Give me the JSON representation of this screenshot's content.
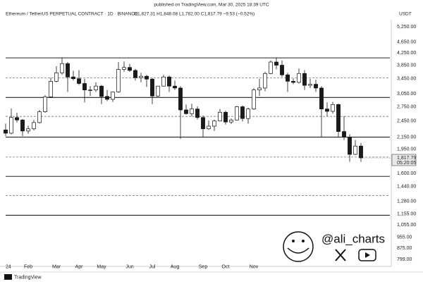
{
  "chart_data": {
    "type": "candlestick",
    "published": "published on TradingView.com, Mar 30, 2025 18:39 UTC",
    "title": "Ethereum / TetherUS PERPETUAL CONTRACT · 1D · BINANCE",
    "subtitle": "O1,827.31  H1,848.08  L1,782.00  C1,817.79  −9.53 (−0.52%)",
    "y_unit": "USDT",
    "footer": "TradingView",
    "watermark": "@ali_charts",
    "log_scale": true,
    "up_color": "#ffffff",
    "down_color": "#1a1a1a",
    "ylim": [
      768,
      5500
    ],
    "yticks": [
      {
        "value": 5250,
        "label": "5,250.00"
      },
      {
        "value": 4650,
        "label": "4,650.00"
      },
      {
        "value": 4250,
        "label": "4,250.00"
      },
      {
        "value": 3850,
        "label": "3,850.00"
      },
      {
        "value": 3450,
        "label": "3,450.00"
      },
      {
        "value": 3050,
        "label": "3,050.00"
      },
      {
        "value": 2750,
        "label": "2,750.00"
      },
      {
        "value": 2450,
        "label": "2,450.00"
      },
      {
        "value": 2150,
        "label": "2,150.00"
      },
      {
        "value": 1950,
        "label": "1,950.00"
      },
      {
        "value": 1600,
        "label": "1,600.00"
      },
      {
        "value": 1440,
        "label": "1,440.00"
      },
      {
        "value": 1280,
        "label": "1,280.00"
      },
      {
        "value": 1155,
        "label": "1,155.00"
      },
      {
        "value": 1055,
        "label": "1,055.00"
      },
      {
        "value": 955,
        "label": "955.00"
      },
      {
        "value": 875,
        "label": "875.00"
      },
      {
        "value": 799,
        "label": "799.00"
      }
    ],
    "last_price": {
      "value": 1817.79,
      "label": "1,817.79",
      "countdown": "05:20:05"
    },
    "levels": [
      {
        "value": 4085,
        "style": "solid"
      },
      {
        "value": 3475,
        "style": "dashed"
      },
      {
        "value": 2965,
        "style": "solid"
      },
      {
        "value": 2543,
        "style": "dashed"
      },
      {
        "value": 2150,
        "style": "solid"
      },
      {
        "value": 1830,
        "style": "dashed"
      },
      {
        "value": 1565,
        "style": "solid"
      },
      {
        "value": 1341,
        "style": "dashed"
      },
      {
        "value": 1142,
        "style": "solid"
      }
    ],
    "categories": [
      "24",
      null,
      null,
      null,
      "Feb",
      null,
      null,
      null,
      null,
      "Mar",
      null,
      null,
      null,
      "Apr",
      null,
      null,
      null,
      "May",
      null,
      null,
      null,
      null,
      "Jun",
      null,
      null,
      null,
      "Jul",
      null,
      null,
      null,
      "Aug",
      null,
      null,
      null,
      null,
      "Sep",
      null,
      null,
      null,
      "Oct",
      null,
      null,
      null,
      null,
      "Nov",
      null,
      null,
      null,
      null,
      null,
      null,
      null,
      null,
      null,
      null,
      null,
      null,
      null,
      null,
      null,
      null,
      null,
      null,
      null
    ],
    "open": [
      2280,
      2220,
      2520,
      2470,
      2260,
      2300,
      2420,
      2640,
      2980,
      3380,
      3620,
      3900,
      3500,
      3450,
      3320,
      3150,
      3150,
      3250,
      2990,
      2920,
      3100,
      3720,
      3780,
      3690,
      3480,
      3520,
      3440,
      3000,
      3250,
      3500,
      3250,
      3200,
      2680,
      2600,
      2700,
      2520,
      2300,
      2350,
      2450,
      2630,
      2430,
      2470,
      2750,
      2500,
      2700,
      3150,
      3200,
      3600,
      3950,
      3850,
      3560,
      3380,
      3350,
      3600,
      3270,
      3300,
      3200,
      2700,
      2650,
      2800,
      2250,
      2150,
      1870,
      2000
    ],
    "high": [
      2400,
      2710,
      2620,
      2490,
      2360,
      2470,
      2680,
      3020,
      3480,
      3820,
      4090,
      3950,
      3680,
      3700,
      3450,
      3250,
      3350,
      3280,
      3150,
      3110,
      3950,
      3970,
      3890,
      3740,
      3620,
      3560,
      3470,
      3260,
      3560,
      3540,
      3400,
      3250,
      2800,
      2820,
      2760,
      2560,
      2460,
      2480,
      2700,
      2660,
      2500,
      2770,
      2780,
      2730,
      3200,
      3450,
      3650,
      4000,
      4100,
      4000,
      3620,
      3460,
      3750,
      3700,
      3450,
      3420,
      3250,
      2850,
      2860,
      2820,
      2550,
      2200,
      2100,
      2050
    ],
    "low": [
      2170,
      2200,
      2420,
      2170,
      2210,
      2270,
      2400,
      2620,
      2960,
      3350,
      3560,
      3100,
      3400,
      3280,
      2850,
      3000,
      3100,
      2810,
      2880,
      2860,
      3080,
      3650,
      3650,
      3400,
      3350,
      3230,
      2810,
      2980,
      3240,
      3100,
      3150,
      2120,
      2580,
      2540,
      2480,
      2150,
      2280,
      2260,
      2440,
      2380,
      2390,
      2460,
      2440,
      2400,
      2680,
      3000,
      3120,
      3580,
      3720,
      3500,
      3100,
      3300,
      3320,
      3150,
      3200,
      3100,
      2150,
      2550,
      2600,
      2150,
      2100,
      1760,
      1860,
      1760
    ],
    "close": [
      2220,
      2520,
      2470,
      2260,
      2300,
      2420,
      2640,
      2980,
      3380,
      3620,
      3900,
      3500,
      3450,
      3320,
      3150,
      3150,
      3250,
      2990,
      2920,
      3100,
      3720,
      3780,
      3690,
      3480,
      3520,
      3440,
      3000,
      3250,
      3500,
      3250,
      3200,
      2680,
      2600,
      2700,
      2520,
      2300,
      2350,
      2450,
      2630,
      2430,
      2470,
      2750,
      2500,
      2700,
      3150,
      3200,
      3600,
      3950,
      3850,
      3560,
      3380,
      3350,
      3600,
      3270,
      3300,
      3200,
      2700,
      2650,
      2800,
      2250,
      2150,
      1870,
      2000,
      1817.79
    ]
  }
}
